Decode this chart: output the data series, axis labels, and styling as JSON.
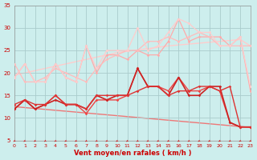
{
  "xlabel": "Vent moyen/en rafales ( km/h )",
  "xlim": [
    0,
    23
  ],
  "ylim": [
    5,
    35
  ],
  "yticks": [
    5,
    10,
    15,
    20,
    25,
    30,
    35
  ],
  "xticks": [
    0,
    1,
    2,
    3,
    4,
    5,
    6,
    7,
    8,
    9,
    10,
    11,
    12,
    13,
    14,
    15,
    16,
    17,
    18,
    19,
    20,
    21,
    22,
    23
  ],
  "bg_color": "#cdeeed",
  "grid_color": "#aacccc",
  "lines": [
    {
      "color": "#ffaaaa",
      "lw": 0.9,
      "marker": "D",
      "markersize": 1.8,
      "y": [
        19,
        22,
        18,
        18,
        22,
        19,
        18,
        26,
        20,
        24,
        24,
        23,
        25,
        24,
        24,
        27,
        32,
        27,
        28,
        28,
        28,
        26,
        28,
        16
      ]
    },
    {
      "color": "#ffbbbb",
      "lw": 0.9,
      "marker": "D",
      "markersize": 1.8,
      "y": [
        22,
        18,
        18,
        19,
        21,
        20,
        19,
        18,
        21,
        23,
        24,
        25,
        25,
        27,
        27,
        28,
        27,
        28,
        29,
        28,
        26,
        26,
        26,
        26
      ]
    },
    {
      "color": "#ffcccc",
      "lw": 0.9,
      "marker": "D",
      "markersize": 1.8,
      "y": [
        19,
        22,
        18,
        18,
        22,
        19,
        18,
        26,
        21,
        25,
        25,
        25,
        30,
        25,
        26,
        29,
        32,
        31,
        29,
        29,
        26,
        26,
        28,
        17
      ]
    },
    {
      "color": "#ee4444",
      "lw": 1.0,
      "marker": "D",
      "markersize": 1.8,
      "y": [
        12,
        14,
        12,
        13,
        15,
        13,
        13,
        11,
        14,
        14,
        14,
        15,
        21,
        17,
        17,
        16,
        19,
        16,
        16,
        17,
        16,
        9,
        8,
        8
      ]
    },
    {
      "color": "#cc2222",
      "lw": 1.2,
      "marker": "D",
      "markersize": 1.8,
      "y": [
        12,
        14,
        12,
        13,
        14,
        13,
        13,
        12,
        15,
        14,
        15,
        15,
        21,
        17,
        17,
        15,
        19,
        15,
        15,
        17,
        17,
        9,
        8,
        8
      ]
    },
    {
      "color": "#dd3333",
      "lw": 1.0,
      "marker": "D",
      "markersize": 1.8,
      "y": [
        13,
        14,
        13,
        13,
        15,
        13,
        13,
        12,
        15,
        15,
        15,
        15,
        16,
        17,
        17,
        15,
        16,
        16,
        17,
        17,
        16,
        17,
        8,
        8
      ]
    }
  ],
  "trend_lines": [
    {
      "color": "#ffcccc",
      "lw": 1.0,
      "y": [
        19.5,
        20.0,
        20.5,
        21.0,
        21.5,
        22.0,
        22.5,
        23.0,
        23.5,
        24.0,
        24.5,
        24.8,
        25.1,
        25.4,
        25.7,
        26.0,
        26.2,
        26.4,
        26.6,
        26.8,
        27.0,
        27.2,
        27.4,
        26.0
      ]
    },
    {
      "color": "#ee7777",
      "lw": 1.0,
      "y": [
        12.5,
        12.3,
        12.1,
        11.9,
        11.7,
        11.5,
        11.3,
        11.1,
        10.9,
        10.7,
        10.5,
        10.3,
        10.1,
        9.9,
        9.7,
        9.5,
        9.3,
        9.1,
        8.9,
        8.7,
        8.5,
        8.3,
        8.1,
        7.9
      ]
    }
  ],
  "arrow_color": "#cc2222"
}
